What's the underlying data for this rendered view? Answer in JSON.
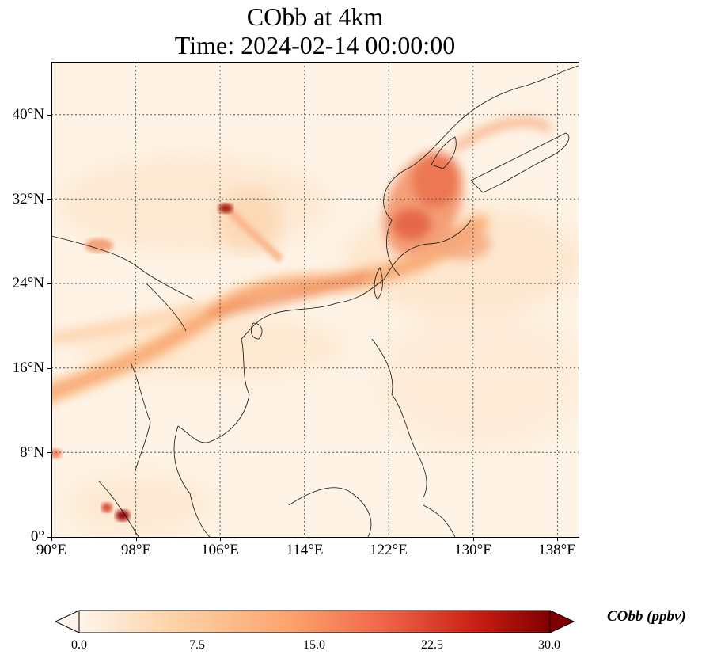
{
  "title_line1": "CObb at 4km",
  "title_line2": "Time: 2024-02-14 00:00:00",
  "map": {
    "lon_range": [
      90,
      140
    ],
    "lat_range": [
      0,
      45
    ],
    "lat_ticks": [
      "0°",
      "8°N",
      "16°N",
      "24°N",
      "32°N",
      "40°N"
    ],
    "lon_ticks": [
      "90°E",
      "98°E",
      "106°E",
      "114°E",
      "122°E",
      "130°E",
      "138°E"
    ],
    "gridlines": "dotted",
    "plume_colors": {
      "low": "#fef3e5",
      "mid": "#fbb47e",
      "high": "#e5523a",
      "peak": "#9b0d0d"
    }
  },
  "colorbar": {
    "label": "CObb (ppbv)",
    "ticks": [
      "0.0",
      "7.5",
      "15.0",
      "22.5",
      "30.0"
    ],
    "extend": "both",
    "colors": [
      "#fff5eb",
      "#fdd3a7",
      "#fca26c",
      "#ef6548",
      "#c81d13",
      "#7f0000"
    ]
  }
}
